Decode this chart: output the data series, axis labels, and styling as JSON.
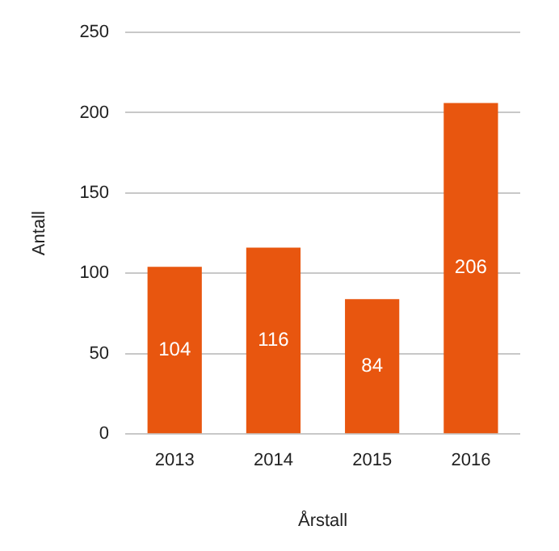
{
  "chart_data": {
    "type": "bar",
    "xlabel": "Årstall",
    "ylabel": "Antall",
    "categories": [
      "2013",
      "2014",
      "2015",
      "2016"
    ],
    "values": [
      104,
      116,
      84,
      206
    ],
    "color": "#e8560f",
    "ylim": [
      0,
      250
    ],
    "yticks": [
      0,
      50,
      100,
      150,
      200,
      250
    ],
    "grid": "y",
    "data_labels": true,
    "legend": false
  }
}
